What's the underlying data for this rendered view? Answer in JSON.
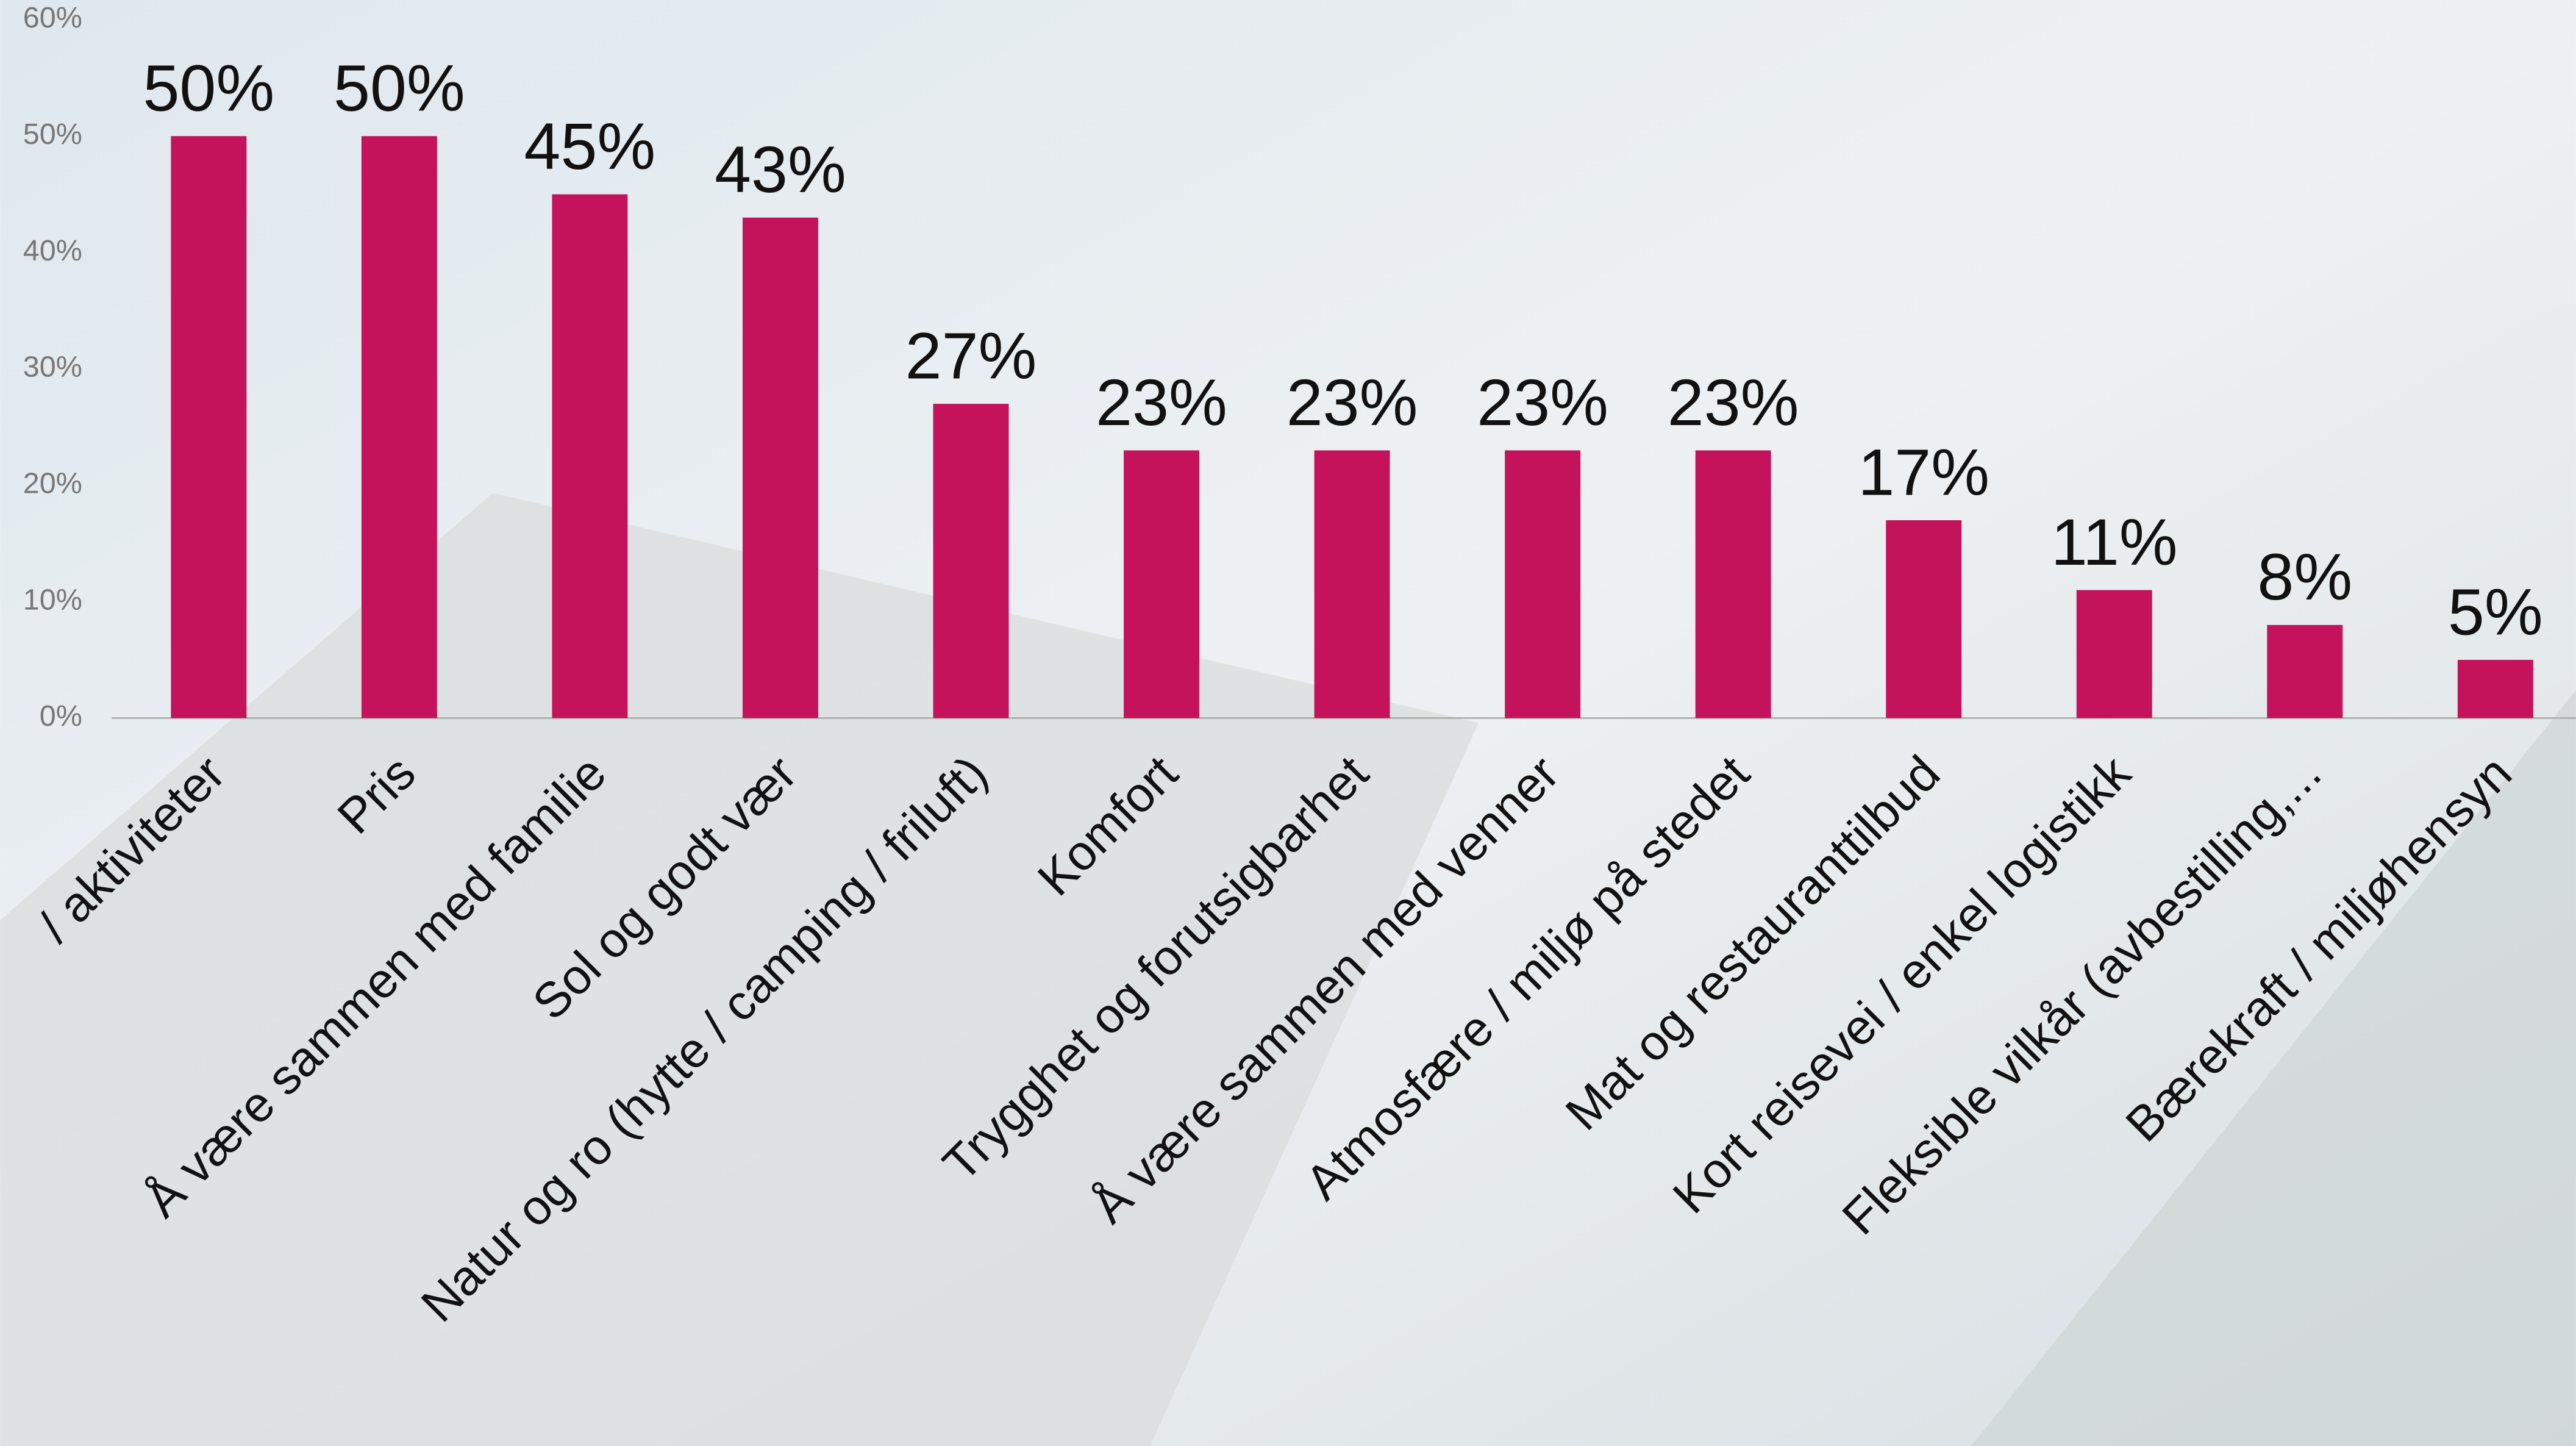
{
  "chart_data": {
    "type": "bar",
    "categories": [
      "/ aktiviteter",
      "Pris",
      "Å være sammen med familie",
      "Sol og godt vær",
      "Natur og ro (hytte / camping / friluft)",
      "Komfort",
      "Trygghet og forutsigbarhet",
      "Å være sammen med venner",
      "Atmosfære / miljø på stedet",
      "Mat og restauranttilbud",
      "Kort reisevei / enkel logistikk",
      "Fleksible vilkår (avbestilling,...",
      "Bærekraft / miljøhensyn"
    ],
    "values": [
      50,
      50,
      45,
      43,
      27,
      23,
      23,
      23,
      23,
      17,
      11,
      8,
      5
    ],
    "value_labels": [
      "50%",
      "50%",
      "45%",
      "43%",
      "27%",
      "23%",
      "23%",
      "23%",
      "23%",
      "17%",
      "11%",
      "8%",
      "5%"
    ],
    "color": "#c4135a",
    "ylim": [
      0,
      60
    ],
    "yticks": [
      {
        "value": 0,
        "label": "0%"
      },
      {
        "value": 10,
        "label": "10%"
      },
      {
        "value": 20,
        "label": "20%"
      },
      {
        "value": 30,
        "label": "30%"
      },
      {
        "value": 40,
        "label": "40%"
      },
      {
        "value": 50,
        "label": "50%"
      },
      {
        "value": 60,
        "label": "60%"
      }
    ],
    "grid": false
  }
}
